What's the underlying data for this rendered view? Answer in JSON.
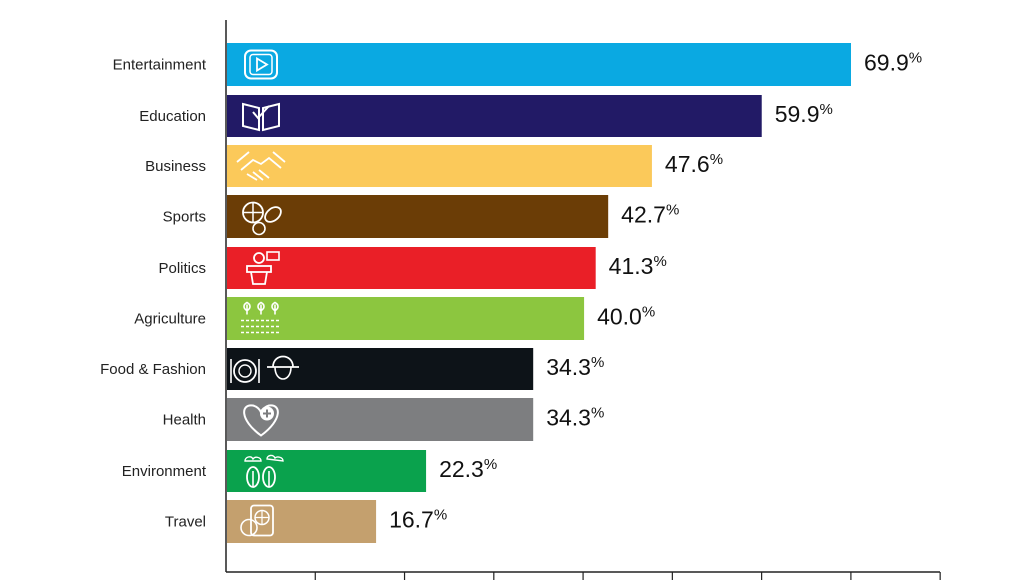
{
  "chart_data": {
    "type": "bar",
    "orientation": "horizontal",
    "categories": [
      "Entertainment",
      "Education",
      "Business",
      "Sports",
      "Politics",
      "Agriculture",
      "Food & Fashion",
      "Health",
      "Environment",
      "Travel"
    ],
    "values": [
      69.9,
      59.9,
      47.6,
      42.7,
      41.3,
      40.0,
      34.3,
      34.3,
      22.3,
      16.7
    ],
    "value_labels": [
      "69.9",
      "59.9",
      "47.6",
      "42.7",
      "41.3",
      "40.0",
      "34.3",
      "34.3",
      "22.3",
      "16.7"
    ],
    "value_suffix": "%",
    "bar_colors": [
      "#0aa9e2",
      "#221a66",
      "#fbc95a",
      "#6b3d06",
      "#ea1f27",
      "#8cc63f",
      "#0d1318",
      "#7d7e80",
      "#0aa24d",
      "#c4a06e"
    ],
    "icons": [
      "video-play-icon",
      "book-check-icon",
      "handshake-icon",
      "sports-balls-icon",
      "podium-speaker-icon",
      "crops-field-icon",
      "dining-hat-icon",
      "heart-plus-icon",
      "trees-clouds-icon",
      "passport-globe-icon"
    ],
    "xlim": [
      0,
      80
    ],
    "title": "",
    "xlabel": "",
    "ylabel": "",
    "grid": false,
    "legend": "none"
  }
}
